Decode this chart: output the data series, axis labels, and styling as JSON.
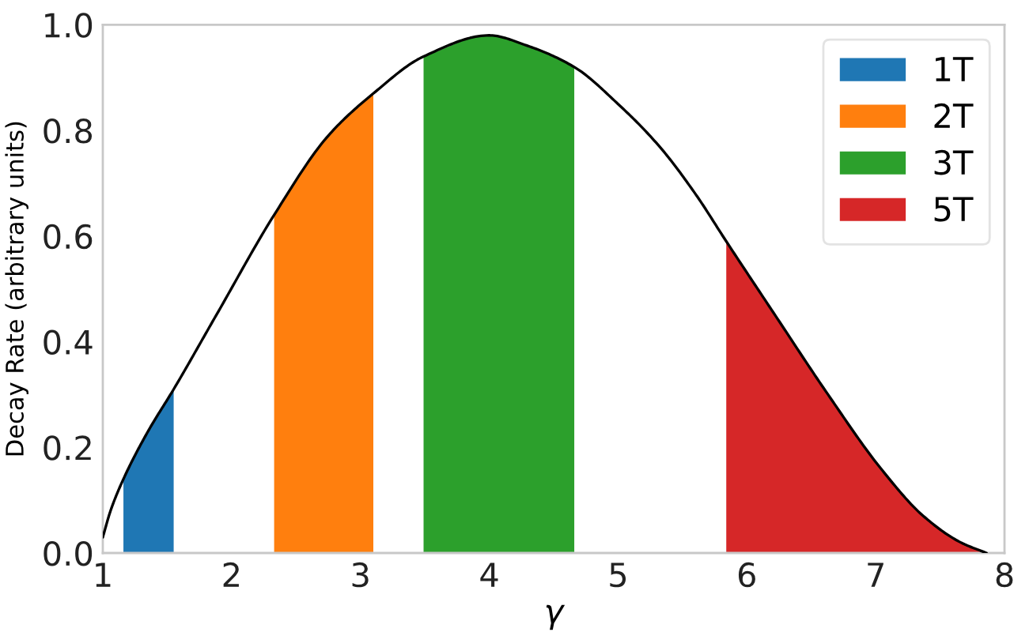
{
  "chart_data": {
    "type": "line",
    "xlabel": "γ",
    "ylabel": "Decay Rate (arbitrary units)",
    "xlim": [
      1,
      8
    ],
    "ylim": [
      0,
      1
    ],
    "xticks": [
      1,
      2,
      3,
      4,
      5,
      6,
      7,
      8
    ],
    "yticks": [
      {
        "value": 0,
        "label": "0.0"
      },
      {
        "value": 0.2,
        "label": "0.2"
      },
      {
        "value": 0.4,
        "label": "0.4"
      },
      {
        "value": 0.6,
        "label": "0.6"
      },
      {
        "value": 0.8,
        "label": "0.8"
      },
      {
        "value": 1,
        "label": "1.0"
      }
    ],
    "legend": "top right",
    "series": [
      {
        "type": "area",
        "name": "1T",
        "color": "#1f77b4",
        "x": [
          1.16,
          1.35,
          1.55
        ],
        "values": [
          0.14,
          0.23,
          0.31
        ]
      },
      {
        "type": "area",
        "name": "2T",
        "color": "#ff7f0e",
        "x": [
          2.33,
          2.75,
          3.1
        ],
        "values": [
          0.64,
          0.79,
          0.87
        ]
      },
      {
        "type": "area",
        "name": "3T",
        "color": "#2ca02c",
        "x": [
          3.49,
          4.0,
          4.3,
          4.66
        ],
        "values": [
          0.94,
          0.98,
          0.96,
          0.92
        ]
      },
      {
        "type": "area",
        "name": "5T",
        "color": "#d62728",
        "x": [
          5.84,
          6.22,
          6.63,
          7.04,
          7.37,
          7.66,
          7.86
        ],
        "values": [
          0.59,
          0.45,
          0.3,
          0.16,
          0.07,
          0.02,
          0.0
        ]
      },
      {
        "color": "#000000",
        "x": [
          1.0,
          1.06,
          1.16,
          1.35,
          1.55,
          1.88,
          2.33,
          2.75,
          3.1,
          3.49,
          4.0,
          4.3,
          4.66,
          5.0,
          5.32,
          5.6,
          5.84,
          6.22,
          6.63,
          7.04,
          7.37,
          7.66,
          7.86
        ],
        "values": [
          0.03,
          0.08,
          0.14,
          0.23,
          0.31,
          0.45,
          0.64,
          0.79,
          0.87,
          0.94,
          0.98,
          0.96,
          0.92,
          0.85,
          0.77,
          0.68,
          0.59,
          0.45,
          0.3,
          0.16,
          0.07,
          0.02,
          0.0
        ]
      }
    ]
  }
}
